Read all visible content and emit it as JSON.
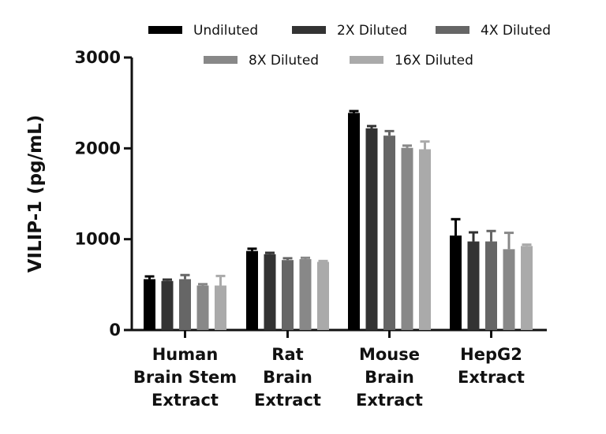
{
  "chart_data": {
    "type": "bar",
    "title": "",
    "xlabel": "",
    "ylabel": "VILIP-1 (pg/mL)",
    "ylim": [
      0,
      3000
    ],
    "yticks": [
      "0",
      "1000",
      "2000",
      "3000"
    ],
    "grid": false,
    "legend_position": "top",
    "categories": [
      [
        "Human",
        "Brain Stem",
        "Extract"
      ],
      [
        "Rat",
        "Brain",
        "Extract"
      ],
      [
        "Mouse",
        "Brain",
        "Extract"
      ],
      [
        "HepG2",
        "Extract"
      ]
    ],
    "series": [
      {
        "name": "Undiluted",
        "color": "#000000",
        "values": [
          560,
          870,
          2390,
          1040
        ],
        "errors": [
          30,
          25,
          20,
          180
        ]
      },
      {
        "name": "2X Diluted",
        "color": "#333333",
        "values": [
          540,
          835,
          2220,
          975
        ],
        "errors": [
          15,
          15,
          25,
          100
        ]
      },
      {
        "name": "4X Diluted",
        "color": "#666666",
        "values": [
          560,
          770,
          2140,
          975
        ],
        "errors": [
          45,
          20,
          50,
          115
        ]
      },
      {
        "name": "8X Diluted",
        "color": "#888888",
        "values": [
          490,
          780,
          2005,
          890
        ],
        "errors": [
          15,
          15,
          25,
          180
        ]
      },
      {
        "name": "16X Diluted",
        "color": "#aaaaaa",
        "values": [
          490,
          750,
          1990,
          925
        ],
        "errors": [
          105,
          10,
          85,
          15
        ]
      }
    ]
  }
}
